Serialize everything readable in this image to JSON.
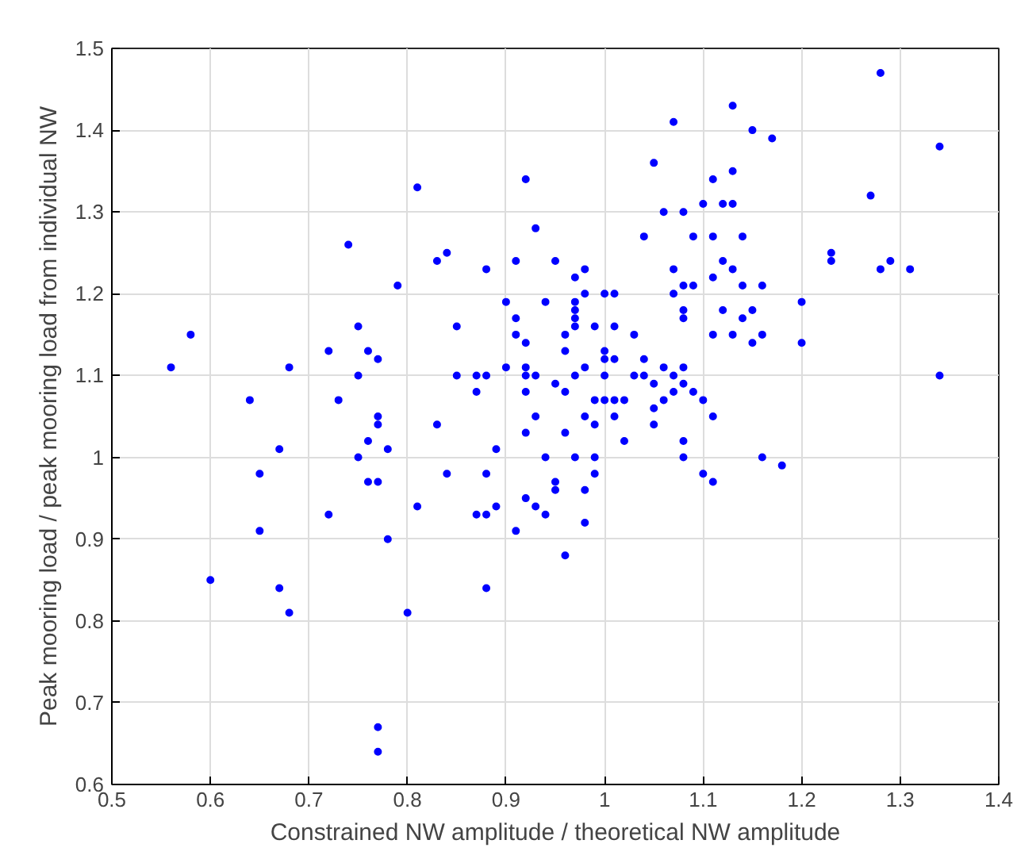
{
  "chart_data": {
    "type": "scatter",
    "xlabel": "Constrained NW amplitude / theoretical NW amplitude",
    "ylabel": "Peak mooring load / peak mooring load from individual NW",
    "xlim": [
      0.5,
      1.4
    ],
    "xticks": [
      0.5,
      0.6,
      0.7,
      0.8,
      0.9,
      1,
      1.1,
      1.2,
      1.3,
      1.4
    ],
    "ylim": [
      0.6,
      1.5
    ],
    "yticks": [
      0.6,
      0.7,
      0.8,
      0.9,
      1,
      1.1,
      1.2,
      1.3,
      1.4,
      1.5
    ],
    "grid": true,
    "marker": "circle",
    "series": [
      {
        "color": "#0000ff",
        "x": [
          0.56,
          0.58,
          0.6,
          0.64,
          0.65,
          0.65,
          0.67,
          0.67,
          0.68,
          0.68,
          0.72,
          0.72,
          0.73,
          0.74,
          0.75,
          0.75,
          0.75,
          0.76,
          0.76,
          0.76,
          0.77,
          0.77,
          0.77,
          0.77,
          0.77,
          0.77,
          0.78,
          0.78,
          0.79,
          0.8,
          0.81,
          0.81,
          0.83,
          0.83,
          0.84,
          0.84,
          0.85,
          0.85,
          0.87,
          0.87,
          0.87,
          0.88,
          0.88,
          0.88,
          0.88,
          0.88,
          0.89,
          0.89,
          0.9,
          0.9,
          0.91,
          0.91,
          0.91,
          0.91,
          0.92,
          0.92,
          0.92,
          0.92,
          0.92,
          0.92,
          0.92,
          0.93,
          0.93,
          0.93,
          0.93,
          0.94,
          0.94,
          0.94,
          0.95,
          0.95,
          0.95,
          0.95,
          0.96,
          0.96,
          0.96,
          0.96,
          0.96,
          0.97,
          0.97,
          0.97,
          0.97,
          0.97,
          0.97,
          0.97,
          0.98,
          0.98,
          0.98,
          0.98,
          0.98,
          0.98,
          0.99,
          0.99,
          0.99,
          0.99,
          0.99,
          1.0,
          1.0,
          1.0,
          1.0,
          1.0,
          1.01,
          1.01,
          1.01,
          1.01,
          1.01,
          1.02,
          1.02,
          1.03,
          1.03,
          1.04,
          1.04,
          1.04,
          1.05,
          1.05,
          1.05,
          1.05,
          1.06,
          1.06,
          1.06,
          1.07,
          1.07,
          1.07,
          1.07,
          1.07,
          1.08,
          1.08,
          1.08,
          1.08,
          1.08,
          1.08,
          1.08,
          1.09,
          1.08,
          1.09,
          1.09,
          1.1,
          1.1,
          1.1,
          1.11,
          1.11,
          1.11,
          1.11,
          1.11,
          1.11,
          1.12,
          1.12,
          1.12,
          1.13,
          1.13,
          1.13,
          1.13,
          1.13,
          1.14,
          1.14,
          1.14,
          1.15,
          1.15,
          1.15,
          1.16,
          1.16,
          1.16,
          1.17,
          1.18,
          1.2,
          1.2,
          1.23,
          1.23,
          1.27,
          1.28,
          1.28,
          1.29,
          1.31,
          1.34,
          1.34
        ],
        "values": [
          1.11,
          1.15,
          0.85,
          1.07,
          0.98,
          0.91,
          1.01,
          0.84,
          1.11,
          0.81,
          1.13,
          0.93,
          1.07,
          1.26,
          1.16,
          1.1,
          1.0,
          1.13,
          1.02,
          0.97,
          1.04,
          1.12,
          1.05,
          0.97,
          0.67,
          0.64,
          0.9,
          1.01,
          1.21,
          0.81,
          0.94,
          1.33,
          1.04,
          1.24,
          1.25,
          0.98,
          1.16,
          1.1,
          1.1,
          1.08,
          0.93,
          0.93,
          0.84,
          0.98,
          1.1,
          1.23,
          1.01,
          0.94,
          1.19,
          1.11,
          0.91,
          1.15,
          1.24,
          1.17,
          1.34,
          1.14,
          1.1,
          1.11,
          1.08,
          1.03,
          0.95,
          0.94,
          1.28,
          1.05,
          1.1,
          0.93,
          1.0,
          1.19,
          1.24,
          1.09,
          0.96,
          0.97,
          1.13,
          1.15,
          1.08,
          1.03,
          0.88,
          1.22,
          1.19,
          1.18,
          1.17,
          1.16,
          1.1,
          1.0,
          1.23,
          1.2,
          1.11,
          1.05,
          0.92,
          0.96,
          1.16,
          1.07,
          1.04,
          1.0,
          0.98,
          1.2,
          1.13,
          1.12,
          1.1,
          1.07,
          1.2,
          1.16,
          1.12,
          1.07,
          1.05,
          1.07,
          1.02,
          1.1,
          1.15,
          1.12,
          1.27,
          1.1,
          1.36,
          1.09,
          1.06,
          1.04,
          1.3,
          1.11,
          1.07,
          1.08,
          1.1,
          1.2,
          1.23,
          1.41,
          1.18,
          1.21,
          1.17,
          1.11,
          1.09,
          1.02,
          1.0,
          1.27,
          1.3,
          1.21,
          1.08,
          0.98,
          1.31,
          1.07,
          1.34,
          1.27,
          1.22,
          1.15,
          1.05,
          0.97,
          1.31,
          1.24,
          1.18,
          1.43,
          1.35,
          1.31,
          1.23,
          1.15,
          1.27,
          1.21,
          1.17,
          1.4,
          1.14,
          1.18,
          1.15,
          1.21,
          1.0,
          1.39,
          0.99,
          1.19,
          1.14,
          1.24,
          1.25,
          1.32,
          1.23,
          1.47,
          1.24,
          1.23,
          1.1,
          1.38
        ]
      }
    ]
  }
}
